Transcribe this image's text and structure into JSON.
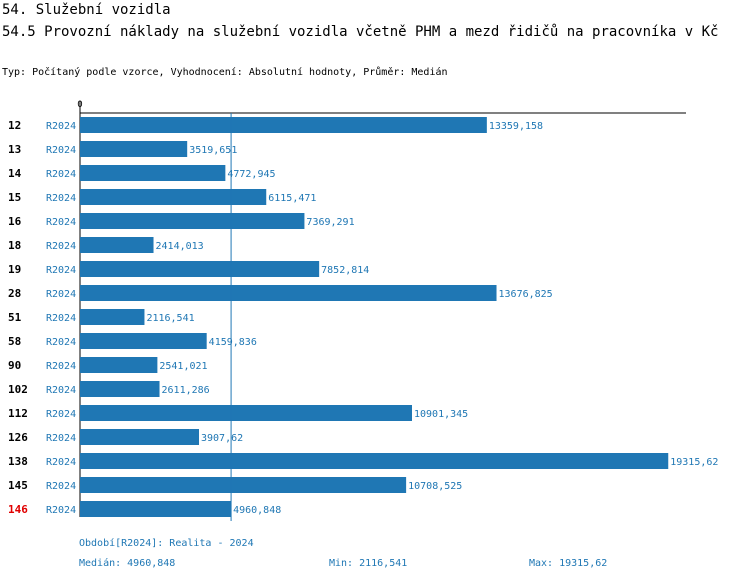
{
  "header": {
    "title": "54. Služební vozidla",
    "subtitle": "54.5 Provozní náklady na služební vozidla včetně PHM a mezd řidičů na pracovníka v Kč",
    "meta": "Typ: Počítaný podle vzorce, Vyhodnocení: Absolutní hodnoty, Průměr: Medián"
  },
  "chart_data": {
    "type": "bar",
    "orientation": "horizontal",
    "categories": [
      "12",
      "13",
      "14",
      "15",
      "16",
      "18",
      "19",
      "28",
      "51",
      "58",
      "90",
      "102",
      "112",
      "126",
      "138",
      "145",
      "146"
    ],
    "series": [
      {
        "name": "R2024",
        "values": [
          13359.158,
          3519.651,
          4772.945,
          6115.471,
          7369.291,
          2414.013,
          7852.814,
          13676.825,
          2116.541,
          4159.836,
          2541.021,
          2611.286,
          10901.345,
          3907.62,
          19315.62,
          10708.525,
          4960.848
        ],
        "value_labels": [
          "13359,158",
          "3519,651",
          "4772,945",
          "6115,471",
          "7369,291",
          "2414,013",
          "7852,814",
          "13676,825",
          "2116,541",
          "4159,836",
          "2541,021",
          "2611,286",
          "10901,345",
          "3907,62",
          "19315,62",
          "10708,525",
          "4960,848"
        ]
      }
    ],
    "row_series_label": "R2024",
    "highlight_category": "146",
    "x_axis_origin_label": "0",
    "xlim": [
      0,
      19800
    ],
    "reference_line": {
      "name": "Medián",
      "value": 4960.848
    },
    "colors": {
      "bar": "#1f77b4",
      "label": "#1f77b4",
      "category": "#000000",
      "highlight": "#e00000"
    }
  },
  "footer": {
    "period": "Období[R2024]: Realita - 2024",
    "median": "Medián: 4960,848",
    "min": "Min: 2116,541",
    "max": "Max: 19315,62"
  }
}
